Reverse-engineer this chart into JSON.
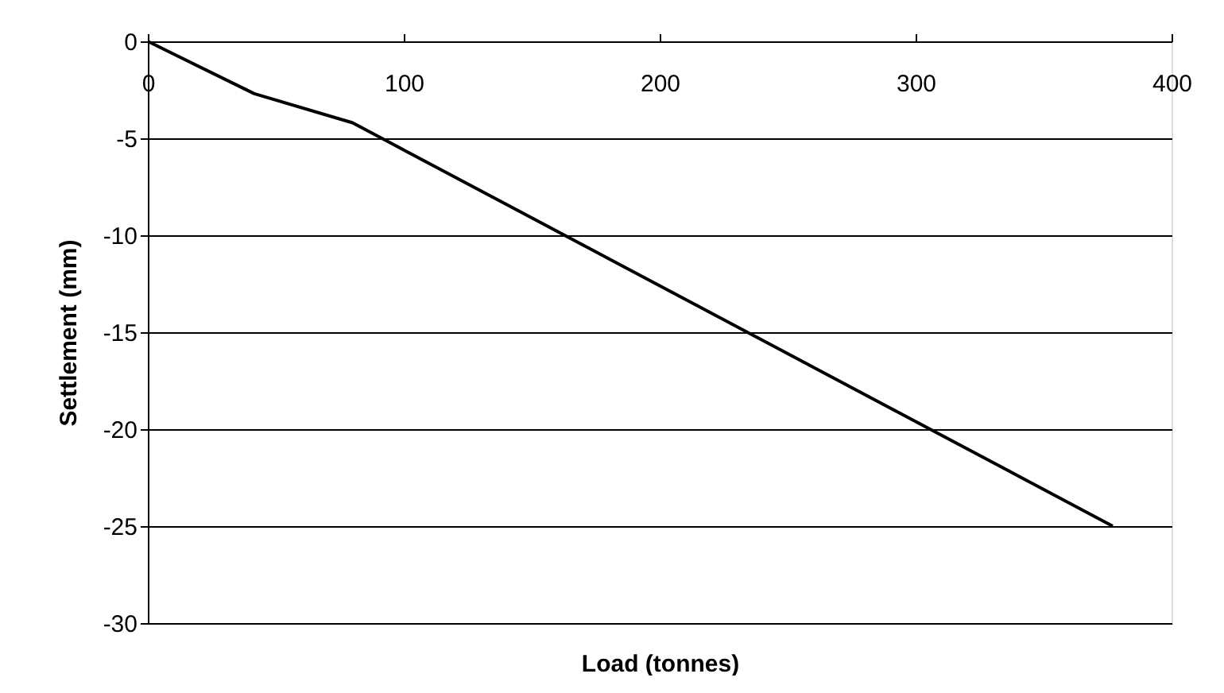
{
  "chart_data": {
    "type": "line",
    "xlabel": "Load (tonnes)",
    "ylabel": "Settlement (mm)",
    "x": [
      0,
      41.6,
      80,
      377
    ],
    "series": [
      {
        "color": "#000000",
        "values": [
          0,
          -2.7,
          -4.2,
          -25
        ]
      }
    ],
    "xlim": [
      0,
      400
    ],
    "xticks": [
      0,
      100,
      200,
      300,
      400
    ],
    "ylim": [
      -30,
      0
    ],
    "yticks": [
      -30,
      -25,
      -20,
      -15,
      -10,
      -5,
      0
    ],
    "grid": "y",
    "marker": "none",
    "line_style": "solid"
  }
}
